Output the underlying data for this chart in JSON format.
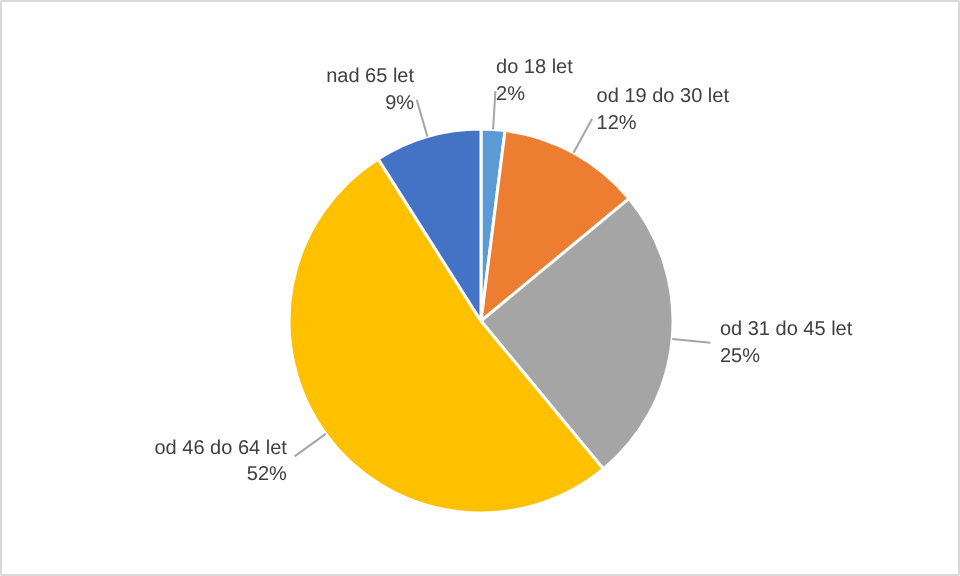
{
  "chart_data": {
    "type": "pie",
    "categories": [
      "do 18 let",
      "od 19 do 30 let",
      "od 31 do 45 let",
      "od 46 do 64 let",
      "nad 65 let"
    ],
    "values": [
      2,
      12,
      25,
      52,
      9
    ],
    "colors": [
      "#5b9bd5",
      "#ed7d31",
      "#a5a5a5",
      "#ffc000",
      "#4472c4"
    ],
    "value_labels": [
      "2%",
      "12%",
      "25%",
      "52%",
      "9%"
    ]
  }
}
